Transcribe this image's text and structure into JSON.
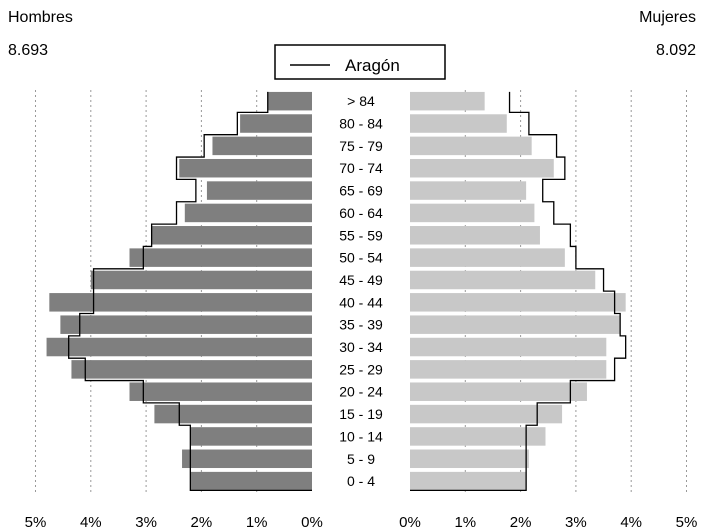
{
  "header": {
    "left_title": "Hombres",
    "left_total": "8.693",
    "right_title": "Mujeres",
    "right_total": "8.092"
  },
  "chart_data": {
    "type": "bar",
    "orientation": "population-pyramid",
    "categories": [
      ">  84",
      "80 - 84",
      "75 - 79",
      "70 - 74",
      "65 - 69",
      "60 - 64",
      "55 - 59",
      "50 - 54",
      "45 - 49",
      "40 - 44",
      "35 - 39",
      "30 - 34",
      "25 - 29",
      "20 - 24",
      "15 - 19",
      "10 - 14",
      "5 - 9",
      "0 - 4"
    ],
    "x_ticks_left": [
      "5%",
      "4%",
      "3%",
      "2%",
      "1%",
      "0%"
    ],
    "x_ticks_right": [
      "0%",
      "1%",
      "2%",
      "3%",
      "4%",
      "5%"
    ],
    "xlim": [
      0,
      5
    ],
    "grid": "vertical dashed",
    "series": [
      {
        "side": "left",
        "values": [
          0.8,
          1.3,
          1.8,
          2.4,
          1.9,
          2.3,
          2.9,
          3.3,
          4.0,
          4.75,
          4.55,
          4.8,
          4.35,
          3.3,
          2.85,
          2.2,
          2.35,
          2.2
        ],
        "color": "#7f7f7f"
      },
      {
        "side": "right",
        "values": [
          1.35,
          1.75,
          2.2,
          2.6,
          2.1,
          2.25,
          2.35,
          2.8,
          3.35,
          3.9,
          3.8,
          3.55,
          3.55,
          3.2,
          2.75,
          2.45,
          2.15,
          2.1
        ],
        "color": "#c8c8c8"
      },
      {
        "name": "Aragón",
        "side": "left",
        "style": "step-outline",
        "values": [
          0.8,
          1.35,
          1.95,
          2.45,
          2.1,
          2.45,
          2.9,
          3.05,
          3.95,
          3.95,
          4.2,
          4.4,
          4.1,
          3.05,
          2.4,
          2.2,
          2.2,
          2.2
        ],
        "color": "#000000"
      },
      {
        "name": "Aragón",
        "side": "right",
        "style": "step-outline",
        "values": [
          1.8,
          2.15,
          2.65,
          2.8,
          2.4,
          2.6,
          2.9,
          3.0,
          3.5,
          3.7,
          3.8,
          3.9,
          3.7,
          2.9,
          2.3,
          2.1,
          2.1,
          2.1
        ],
        "color": "#000000"
      }
    ],
    "legend": {
      "label": "Aragón",
      "placement": "top-center"
    }
  }
}
